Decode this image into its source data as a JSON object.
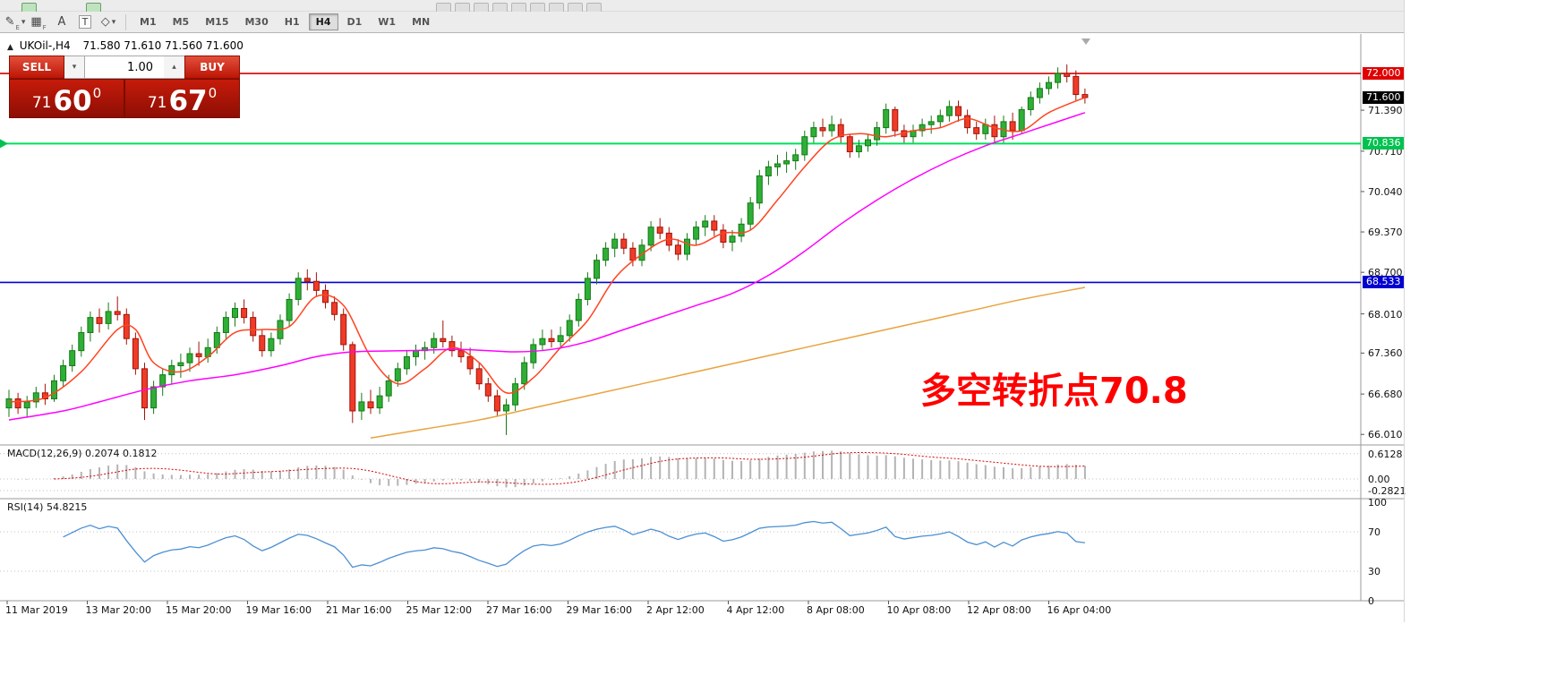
{
  "icons": {
    "caret_down": "▾",
    "caret_up": "▴",
    "collapse": "▲"
  },
  "toolbar": {
    "top_icons": [
      "charts-icon",
      "new-order-icon",
      "cursor-icon",
      "crosshair-icon",
      "vline-icon",
      "hline-icon",
      "trendline-icon",
      "channel-icon",
      "fibonacci-icon",
      "text-icon",
      "arrow-icon"
    ],
    "tools": [
      {
        "name": "pencil-icon",
        "glyph": "✎",
        "sub": "E"
      },
      {
        "name": "grid-icon",
        "glyph": "▦",
        "sub": "F"
      },
      {
        "name": "text-label-icon",
        "glyph": "A",
        "sub": ""
      },
      {
        "name": "text-box-icon",
        "glyph": "T",
        "sub": ""
      },
      {
        "name": "shapes-icon",
        "glyph": "◇",
        "sub": ""
      }
    ],
    "timeframes": [
      {
        "label": "M1",
        "active": false
      },
      {
        "label": "M5",
        "active": false
      },
      {
        "label": "M15",
        "active": false
      },
      {
        "label": "M30",
        "active": false
      },
      {
        "label": "H1",
        "active": false
      },
      {
        "label": "H4",
        "active": true
      },
      {
        "label": "D1",
        "active": false
      },
      {
        "label": "W1",
        "active": false
      },
      {
        "label": "MN",
        "active": false
      }
    ]
  },
  "chart": {
    "header": {
      "symbol": "UKOil-,H4",
      "ohlc": "71.580 71.610 71.560 71.600"
    }
  },
  "trade_panel": {
    "sell_label": "SELL",
    "buy_label": "BUY",
    "volume": "1.00",
    "sell_price": {
      "small": "71",
      "big": "60",
      "pip": "0"
    },
    "buy_price": {
      "small": "71",
      "big": "67",
      "pip": "0"
    }
  },
  "annotation": {
    "text": "多空转折点70.8",
    "color": "#ff0000"
  },
  "chart_data": {
    "type": "candlestick",
    "symbol": "UKOil-",
    "timeframe": "H4",
    "ohlc_display": "71.580 71.610 71.560 71.600",
    "ylim": [
      65.85,
      72.55
    ],
    "up_color": "#2fae38",
    "down_color": "#f03b28",
    "up_stroke": "#157a15",
    "down_stroke": "#a01408",
    "price_axis_labels": [
      "71.390",
      "70.710",
      "70.040",
      "69.370",
      "68.700",
      "68.010",
      "67.360",
      "66.680",
      "66.010"
    ],
    "time_axis_labels": [
      "11 Mar 2019",
      "13 Mar 20:00",
      "15 Mar 20:00",
      "19 Mar 16:00",
      "21 Mar 16:00",
      "25 Mar 12:00",
      "27 Mar 16:00",
      "29 Mar 16:00",
      "2 Apr 12:00",
      "4 Apr 12:00",
      "8 Apr 08:00",
      "10 Apr 08:00",
      "12 Apr 08:00",
      "16 Apr 04:00"
    ],
    "hlines": [
      {
        "price": 72.0,
        "label": "72.000",
        "color": "#d40000",
        "tag_bg": "#e00000"
      },
      {
        "price": 70.836,
        "label": "70.836",
        "color": "#00e05a",
        "tag_bg": "#00c24e"
      },
      {
        "price": 68.533,
        "label": "68.533",
        "color": "#0000d8",
        "tag_bg": "#0000d0"
      }
    ],
    "current_price": {
      "value": 71.6,
      "label": "71.600",
      "tag_bg": "#000000"
    },
    "candles": [
      [
        66.45,
        66.75,
        66.3,
        66.6
      ],
      [
        66.6,
        66.7,
        66.35,
        66.45
      ],
      [
        66.45,
        66.65,
        66.3,
        66.55
      ],
      [
        66.55,
        66.8,
        66.45,
        66.7
      ],
      [
        66.7,
        66.85,
        66.5,
        66.6
      ],
      [
        66.6,
        67.0,
        66.55,
        66.9
      ],
      [
        66.9,
        67.25,
        66.8,
        67.15
      ],
      [
        67.15,
        67.5,
        67.05,
        67.4
      ],
      [
        67.4,
        67.8,
        67.3,
        67.7
      ],
      [
        67.7,
        68.05,
        67.55,
        67.95
      ],
      [
        67.95,
        68.1,
        67.7,
        67.85
      ],
      [
        67.85,
        68.2,
        67.75,
        68.05
      ],
      [
        68.05,
        68.3,
        67.9,
        68.0
      ],
      [
        68.0,
        68.1,
        67.5,
        67.6
      ],
      [
        67.6,
        67.7,
        67.0,
        67.1
      ],
      [
        67.1,
        67.2,
        66.25,
        66.45
      ],
      [
        66.45,
        66.9,
        66.35,
        66.8
      ],
      [
        66.8,
        67.1,
        66.65,
        67.0
      ],
      [
        67.0,
        67.25,
        66.85,
        67.15
      ],
      [
        67.15,
        67.35,
        66.95,
        67.2
      ],
      [
        67.2,
        67.45,
        67.05,
        67.35
      ],
      [
        67.35,
        67.55,
        67.15,
        67.3
      ],
      [
        67.3,
        67.6,
        67.2,
        67.45
      ],
      [
        67.45,
        67.8,
        67.35,
        67.7
      ],
      [
        67.7,
        68.05,
        67.6,
        67.95
      ],
      [
        67.95,
        68.2,
        67.8,
        68.1
      ],
      [
        68.1,
        68.25,
        67.85,
        67.95
      ],
      [
        67.95,
        68.05,
        67.55,
        67.65
      ],
      [
        67.65,
        67.75,
        67.3,
        67.4
      ],
      [
        67.4,
        67.7,
        67.3,
        67.6
      ],
      [
        67.6,
        68.0,
        67.5,
        67.9
      ],
      [
        67.9,
        68.35,
        67.8,
        68.25
      ],
      [
        68.25,
        68.7,
        68.15,
        68.6
      ],
      [
        68.6,
        68.75,
        68.4,
        68.55
      ],
      [
        68.55,
        68.7,
        68.3,
        68.4
      ],
      [
        68.4,
        68.5,
        68.1,
        68.2
      ],
      [
        68.2,
        68.3,
        67.9,
        68.0
      ],
      [
        68.0,
        68.1,
        67.4,
        67.5
      ],
      [
        67.5,
        67.55,
        66.2,
        66.4
      ],
      [
        66.4,
        66.7,
        66.25,
        66.55
      ],
      [
        66.55,
        66.75,
        66.35,
        66.45
      ],
      [
        66.45,
        66.8,
        66.35,
        66.65
      ],
      [
        66.65,
        67.0,
        66.55,
        66.9
      ],
      [
        66.9,
        67.2,
        66.8,
        67.1
      ],
      [
        67.1,
        67.4,
        67.0,
        67.3
      ],
      [
        67.3,
        67.5,
        67.15,
        67.4
      ],
      [
        67.4,
        67.55,
        67.25,
        67.45
      ],
      [
        67.45,
        67.7,
        67.35,
        67.6
      ],
      [
        67.6,
        67.9,
        67.45,
        67.55
      ],
      [
        67.55,
        67.65,
        67.3,
        67.4
      ],
      [
        67.4,
        67.55,
        67.2,
        67.3
      ],
      [
        67.3,
        67.45,
        67.0,
        67.1
      ],
      [
        67.1,
        67.2,
        66.75,
        66.85
      ],
      [
        66.85,
        66.95,
        66.55,
        66.65
      ],
      [
        66.65,
        66.75,
        66.3,
        66.4
      ],
      [
        66.4,
        66.6,
        66.0,
        66.5
      ],
      [
        66.5,
        66.95,
        66.4,
        66.85
      ],
      [
        66.85,
        67.3,
        66.75,
        67.2
      ],
      [
        67.2,
        67.6,
        67.1,
        67.5
      ],
      [
        67.5,
        67.75,
        67.4,
        67.6
      ],
      [
        67.6,
        67.75,
        67.45,
        67.55
      ],
      [
        67.55,
        67.8,
        67.45,
        67.65
      ],
      [
        67.65,
        68.0,
        67.55,
        67.9
      ],
      [
        67.9,
        68.35,
        67.8,
        68.25
      ],
      [
        68.25,
        68.7,
        68.15,
        68.6
      ],
      [
        68.6,
        69.0,
        68.5,
        68.9
      ],
      [
        68.9,
        69.2,
        68.8,
        69.1
      ],
      [
        69.1,
        69.35,
        68.95,
        69.25
      ],
      [
        69.25,
        69.35,
        69.0,
        69.1
      ],
      [
        69.1,
        69.2,
        68.8,
        68.9
      ],
      [
        68.9,
        69.25,
        68.8,
        69.15
      ],
      [
        69.15,
        69.55,
        69.05,
        69.45
      ],
      [
        69.45,
        69.6,
        69.25,
        69.35
      ],
      [
        69.35,
        69.45,
        69.05,
        69.15
      ],
      [
        69.15,
        69.25,
        68.9,
        69.0
      ],
      [
        69.0,
        69.35,
        68.9,
        69.25
      ],
      [
        69.25,
        69.55,
        69.15,
        69.45
      ],
      [
        69.45,
        69.65,
        69.3,
        69.55
      ],
      [
        69.55,
        69.65,
        69.3,
        69.4
      ],
      [
        69.4,
        69.5,
        69.1,
        69.2
      ],
      [
        69.2,
        69.4,
        69.05,
        69.3
      ],
      [
        69.3,
        69.6,
        69.2,
        69.5
      ],
      [
        69.5,
        69.95,
        69.4,
        69.85
      ],
      [
        69.85,
        70.4,
        69.75,
        70.3
      ],
      [
        70.3,
        70.55,
        70.15,
        70.45
      ],
      [
        70.45,
        70.65,
        70.3,
        70.5
      ],
      [
        70.5,
        70.7,
        70.35,
        70.55
      ],
      [
        70.55,
        70.75,
        70.4,
        70.65
      ],
      [
        70.65,
        71.05,
        70.55,
        70.95
      ],
      [
        70.95,
        71.2,
        70.85,
        71.1
      ],
      [
        71.1,
        71.25,
        70.95,
        71.05
      ],
      [
        71.05,
        71.3,
        70.95,
        71.15
      ],
      [
        71.15,
        71.25,
        70.85,
        70.95
      ],
      [
        70.95,
        71.0,
        70.6,
        70.7
      ],
      [
        70.7,
        70.9,
        70.6,
        70.8
      ],
      [
        70.8,
        71.0,
        70.7,
        70.9
      ],
      [
        70.9,
        71.2,
        70.8,
        71.1
      ],
      [
        71.1,
        71.5,
        71.0,
        71.4
      ],
      [
        71.4,
        71.45,
        70.95,
        71.05
      ],
      [
        71.05,
        71.15,
        70.85,
        70.95
      ],
      [
        70.95,
        71.15,
        70.85,
        71.05
      ],
      [
        71.05,
        71.25,
        70.95,
        71.15
      ],
      [
        71.15,
        71.3,
        71.0,
        71.2
      ],
      [
        71.2,
        71.4,
        71.1,
        71.3
      ],
      [
        71.3,
        71.55,
        71.2,
        71.45
      ],
      [
        71.45,
        71.55,
        71.2,
        71.3
      ],
      [
        71.3,
        71.4,
        71.0,
        71.1
      ],
      [
        71.1,
        71.2,
        70.9,
        71.0
      ],
      [
        71.0,
        71.25,
        70.9,
        71.15
      ],
      [
        71.15,
        71.3,
        70.85,
        70.95
      ],
      [
        70.95,
        71.3,
        70.85,
        71.2
      ],
      [
        71.2,
        71.35,
        70.9,
        71.05
      ],
      [
        71.05,
        71.45,
        71.0,
        71.4
      ],
      [
        71.4,
        71.7,
        71.3,
        71.6
      ],
      [
        71.6,
        71.85,
        71.5,
        71.75
      ],
      [
        71.75,
        71.95,
        71.65,
        71.85
      ],
      [
        71.85,
        72.1,
        71.75,
        72.0
      ],
      [
        72.0,
        72.15,
        71.85,
        71.95
      ],
      [
        71.95,
        72.05,
        71.55,
        71.65
      ],
      [
        71.65,
        71.75,
        71.5,
        71.6
      ]
    ],
    "moving_averages": [
      {
        "name": "ma-fast",
        "color": "#ff4420",
        "points": [
          [
            0,
            66.55
          ],
          [
            4,
            66.62
          ],
          [
            8,
            67.05
          ],
          [
            12,
            67.75
          ],
          [
            14,
            67.75
          ],
          [
            16,
            67.2
          ],
          [
            19,
            67.05
          ],
          [
            22,
            67.3
          ],
          [
            25,
            67.7
          ],
          [
            28,
            67.75
          ],
          [
            31,
            67.8
          ],
          [
            34,
            68.3
          ],
          [
            37,
            68.15
          ],
          [
            40,
            67.3
          ],
          [
            43,
            66.85
          ],
          [
            46,
            67.1
          ],
          [
            49,
            67.45
          ],
          [
            52,
            67.2
          ],
          [
            55,
            66.7
          ],
          [
            58,
            66.95
          ],
          [
            61,
            67.45
          ],
          [
            64,
            67.9
          ],
          [
            67,
            68.6
          ],
          [
            70,
            69.0
          ],
          [
            73,
            69.25
          ],
          [
            76,
            69.15
          ],
          [
            79,
            69.35
          ],
          [
            82,
            69.4
          ],
          [
            85,
            69.9
          ],
          [
            88,
            70.45
          ],
          [
            91,
            70.9
          ],
          [
            94,
            71.0
          ],
          [
            97,
            70.95
          ],
          [
            100,
            71.05
          ],
          [
            103,
            71.1
          ],
          [
            106,
            71.25
          ],
          [
            109,
            71.1
          ],
          [
            112,
            71.05
          ],
          [
            115,
            71.35
          ],
          [
            119,
            71.6
          ]
        ]
      },
      {
        "name": "ma-mid",
        "color": "#ff00ff",
        "points": [
          [
            0,
            66.25
          ],
          [
            6,
            66.4
          ],
          [
            10,
            66.55
          ],
          [
            15,
            66.75
          ],
          [
            20,
            66.9
          ],
          [
            25,
            67.0
          ],
          [
            30,
            67.15
          ],
          [
            34,
            67.3
          ],
          [
            38,
            67.38
          ],
          [
            44,
            67.4
          ],
          [
            50,
            67.42
          ],
          [
            56,
            67.38
          ],
          [
            60,
            67.42
          ],
          [
            64,
            67.55
          ],
          [
            68,
            67.75
          ],
          [
            72,
            67.95
          ],
          [
            76,
            68.15
          ],
          [
            80,
            68.35
          ],
          [
            84,
            68.65
          ],
          [
            88,
            69.05
          ],
          [
            92,
            69.5
          ],
          [
            96,
            69.9
          ],
          [
            100,
            70.25
          ],
          [
            104,
            70.55
          ],
          [
            108,
            70.8
          ],
          [
            112,
            71.0
          ],
          [
            116,
            71.2
          ],
          [
            119,
            71.35
          ]
        ]
      },
      {
        "name": "ma-slow",
        "color": "#e8a33d",
        "points": [
          [
            40,
            65.95
          ],
          [
            46,
            66.1
          ],
          [
            52,
            66.25
          ],
          [
            58,
            66.45
          ],
          [
            64,
            66.65
          ],
          [
            70,
            66.85
          ],
          [
            76,
            67.05
          ],
          [
            82,
            67.25
          ],
          [
            88,
            67.45
          ],
          [
            94,
            67.65
          ],
          [
            100,
            67.85
          ],
          [
            106,
            68.05
          ],
          [
            112,
            68.25
          ],
          [
            119,
            68.45
          ]
        ]
      }
    ],
    "macd": {
      "header": "MACD(12,26,9) 0.2074 0.1812",
      "params": "12,26,9",
      "values": [
        "0.2074",
        "0.1812"
      ],
      "scale": [
        "0.6128",
        "0.00",
        "-0.2821"
      ],
      "histogram_color": "#b4b4b4",
      "signal_color": "#d40000"
    },
    "rsi": {
      "header": "RSI(14) 54.8215",
      "period": "14",
      "value": "54.8215",
      "scale": [
        "100",
        "70",
        "30",
        "0"
      ],
      "levels": [
        70,
        30
      ],
      "line_color": "#4a8fd4"
    }
  }
}
